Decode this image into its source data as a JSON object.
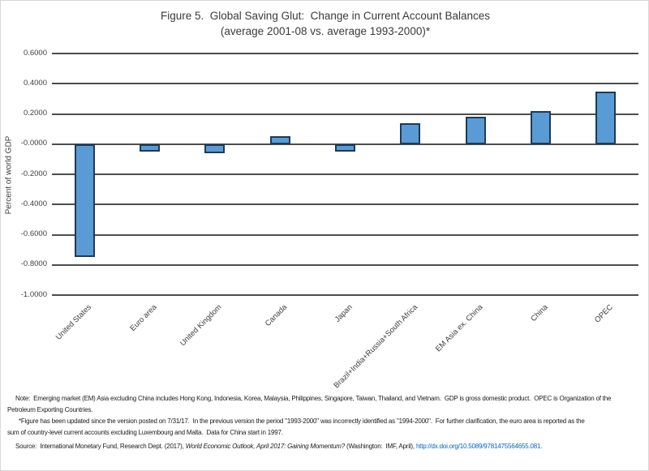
{
  "title": {
    "line1": "Figure 5.  Global Saving Glut:  Change in Current Account Balances",
    "line2": "(average 2001-08 vs. average 1993-2000)*"
  },
  "chart_data": {
    "type": "bar",
    "title": "Figure 5. Global Saving Glut: Change in Current Account Balances (average 2001-08 vs. average 1993-2000)*",
    "categories": [
      "United States",
      "Euro area",
      "United Kingdom",
      "Canada",
      "Japan",
      "Brazil+India+Russia+South Africa",
      "EM Asia ex. China",
      "China",
      "OPEC"
    ],
    "values": [
      -0.75,
      -0.05,
      -0.06,
      0.05,
      -0.05,
      0.14,
      0.18,
      0.22,
      0.35
    ],
    "xlabel": "",
    "ylabel": "Percent of world GDP",
    "ylim": [
      -1.0,
      0.6
    ],
    "ytick_step": 0.2,
    "ytick_decimals": 4,
    "grid": true,
    "legend": "none",
    "bar_color": "#5B9BD5",
    "bar_border_color": "#1F3A54",
    "gridline_color": "#4D4D4D"
  },
  "footnotes": {
    "note_lines": [
      "Note:  Emerging market (EM) Asia excluding China includes Hong Kong, Indonesia, Korea, Malaysia, Philippines, Singapore, Taiwan, Thailand, and Vietnam.  GDP is gross domestic product.  OPEC is Organization of the",
      "Petroleum Exporting Countries."
    ],
    "update_lines": [
      "*Figure has been updated since the version posted on 7/31/17.  In the previous version the period \"1993-2000\" was incorrectly identified as \"1994-2000\".  For further clarification, the euro area is reported as the",
      "sum of country-level current accounts excluding Luxembourg and Malta.  Data for China start in 1997."
    ],
    "source": {
      "prefix": "Source:  International Monetary Fund, Research Dept. (2017), ",
      "italic": "World Economic Outlook, April 2017: Gaining Momentum?",
      "middle": " (Washington:  IMF, April), ",
      "link": "http://dx.doi.org/10.5089/9781475564655.081."
    }
  }
}
